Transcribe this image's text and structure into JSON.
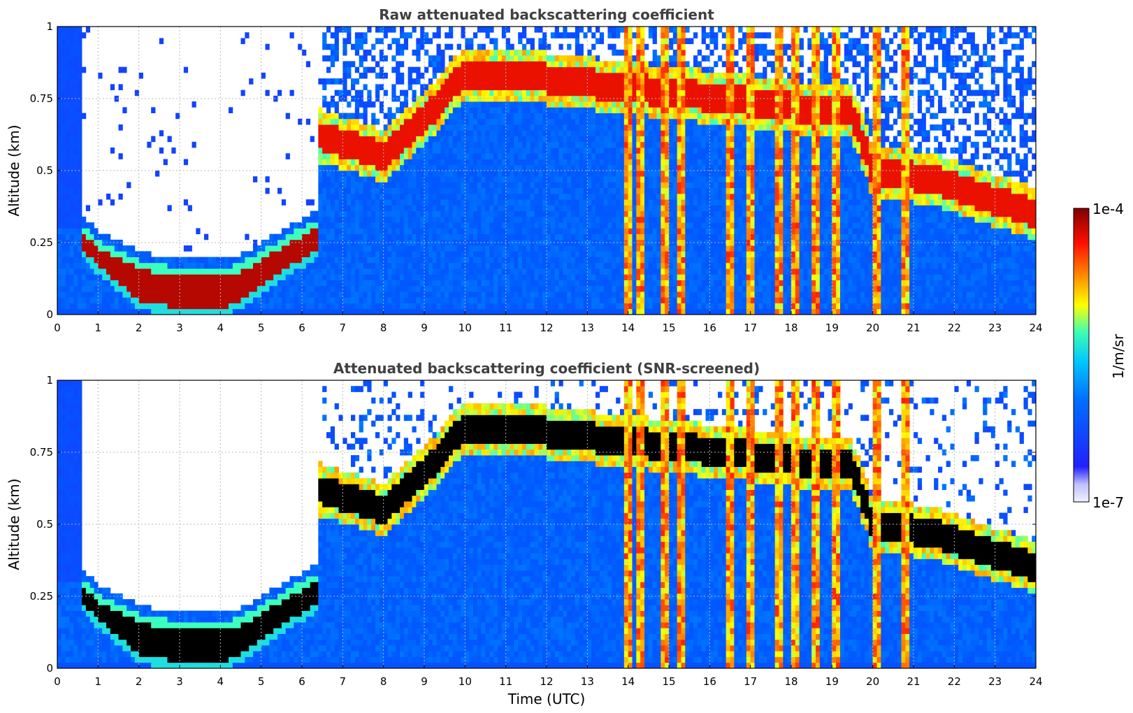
{
  "chart_data": [
    {
      "type": "heatmap",
      "title": "Raw attenuated backscattering coefficient",
      "ylabel": "Altitude (km)",
      "xlabel": "",
      "xlim": [
        0,
        24
      ],
      "ylim": [
        0,
        1
      ],
      "xticks": [
        "0",
        "1",
        "2",
        "3",
        "4",
        "5",
        "6",
        "7",
        "8",
        "9",
        "10",
        "11",
        "12",
        "13",
        "14",
        "15",
        "16",
        "17",
        "18",
        "19",
        "20",
        "21",
        "22",
        "23",
        "24"
      ],
      "yticks": [
        "0",
        "0.25",
        "0.5",
        "0.75",
        "1"
      ],
      "grid": true,
      "colorscale": "jet (log)",
      "screened": false,
      "features": {
        "noisy_top_gap_hours": [
          [
            0.6,
            7.0
          ]
        ],
        "low_layer": [
          {
            "t": 0.55,
            "top": 0.29,
            "bottom": 0.24
          },
          {
            "t": 1.0,
            "top": 0.23,
            "bottom": 0.17
          },
          {
            "t": 2.0,
            "top": 0.16,
            "bottom": 0.05
          },
          {
            "t": 3.0,
            "top": 0.13,
            "bottom": 0.02
          },
          {
            "t": 4.0,
            "top": 0.13,
            "bottom": 0.02
          },
          {
            "t": 4.5,
            "top": 0.15,
            "bottom": 0.05
          },
          {
            "t": 5.5,
            "top": 0.23,
            "bottom": 0.15
          },
          {
            "t": 6.3,
            "top": 0.3,
            "bottom": 0.22
          }
        ],
        "aerosol_layer": [
          {
            "t": 6.5,
            "alt": 0.62
          },
          {
            "t": 8.0,
            "alt": 0.55
          },
          {
            "t": 9.0,
            "alt": 0.68
          },
          {
            "t": 10.0,
            "alt": 0.84
          },
          {
            "t": 12.0,
            "alt": 0.82
          },
          {
            "t": 19.5,
            "alt": 0.7
          },
          {
            "t": 20.0,
            "alt": 0.5
          },
          {
            "t": 21.5,
            "alt": 0.47
          },
          {
            "t": 22.5,
            "alt": 0.42
          },
          {
            "t": 24.0,
            "alt": 0.35
          }
        ],
        "tall_plumes_hours": [
          14.0,
          14.3,
          14.9,
          15.3,
          16.5,
          17.0,
          17.7,
          18.1,
          18.6,
          19.1,
          20.1,
          20.8
        ]
      }
    },
    {
      "type": "heatmap",
      "title": "Attenuated backscattering coefficient (SNR-screened)",
      "ylabel": "Altitude (km)",
      "xlabel": "Time (UTC)",
      "xlim": [
        0,
        24
      ],
      "ylim": [
        0,
        1
      ],
      "xticks": [
        "0",
        "1",
        "2",
        "3",
        "4",
        "5",
        "6",
        "7",
        "8",
        "9",
        "10",
        "11",
        "12",
        "13",
        "14",
        "15",
        "16",
        "17",
        "18",
        "19",
        "20",
        "21",
        "22",
        "23",
        "24"
      ],
      "yticks": [
        "0",
        "0.25",
        "0.5",
        "0.75",
        "1"
      ],
      "grid": true,
      "colorscale": "jet (log)",
      "screened": true,
      "saturated_color": "#000000"
    }
  ],
  "colorbar": {
    "label": "1/m/sr",
    "max_label": "1e-4",
    "min_label": "1e-7",
    "scale": "log",
    "stops": [
      "#ebebff",
      "#0000ff",
      "#0080ff",
      "#00e0ff",
      "#80ff80",
      "#ffff00",
      "#ff8000",
      "#ff0000",
      "#800000"
    ]
  }
}
